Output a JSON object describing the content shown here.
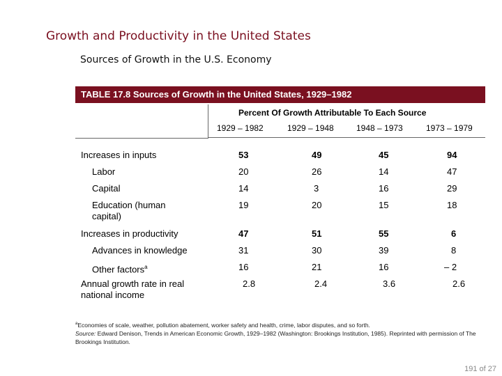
{
  "slide": {
    "title": "Growth and Productivity in the United States",
    "subtitle": "Sources of Growth in the U.S. Economy"
  },
  "table": {
    "caption": "TABLE 17.8   Sources of Growth in the United States, 1929–1982",
    "super_header": "Percent Of Growth Attributable To Each Source",
    "columns": [
      "1929 – 1982",
      "1929 – 1948",
      "1948 – 1973",
      "1973 – 1979"
    ],
    "rows": [
      {
        "label": "Increases in inputs",
        "values": [
          "53",
          "49",
          "45",
          "94"
        ]
      },
      {
        "label": "Labor",
        "values": [
          "20",
          "26",
          "14",
          "47"
        ]
      },
      {
        "label": "Capital",
        "values": [
          "14",
          "3",
          "16",
          "29"
        ]
      },
      {
        "label": "Education (human capital)",
        "values": [
          "19",
          "20",
          "15",
          "18"
        ]
      },
      {
        "label": "Increases in productivity",
        "values": [
          "47",
          "51",
          "55",
          "6"
        ]
      },
      {
        "label": "Advances in knowledge",
        "values": [
          "31",
          "30",
          "39",
          "8"
        ]
      },
      {
        "label": "Other factors",
        "label_mark": "a",
        "values": [
          "16",
          "21",
          "16",
          "– 2"
        ]
      },
      {
        "label": "Annual growth rate in real national income",
        "values": [
          "2.8",
          "2.4",
          "3.6",
          "2.6"
        ]
      }
    ]
  },
  "footnote": {
    "mark": "a",
    "note": "Economies of scale, weather, pollution abatement, worker safety and health, crime, labor disputes, and so forth.",
    "source_label": "Source:",
    "source_text": "Edward Denison, Trends in American Economic Growth, 1929–1982 (Washington: Brookings Institution, 1985). Reprinted with permission of The Brookings Institution."
  },
  "page": {
    "current": "191",
    "of_label": "of",
    "total": "27"
  }
}
